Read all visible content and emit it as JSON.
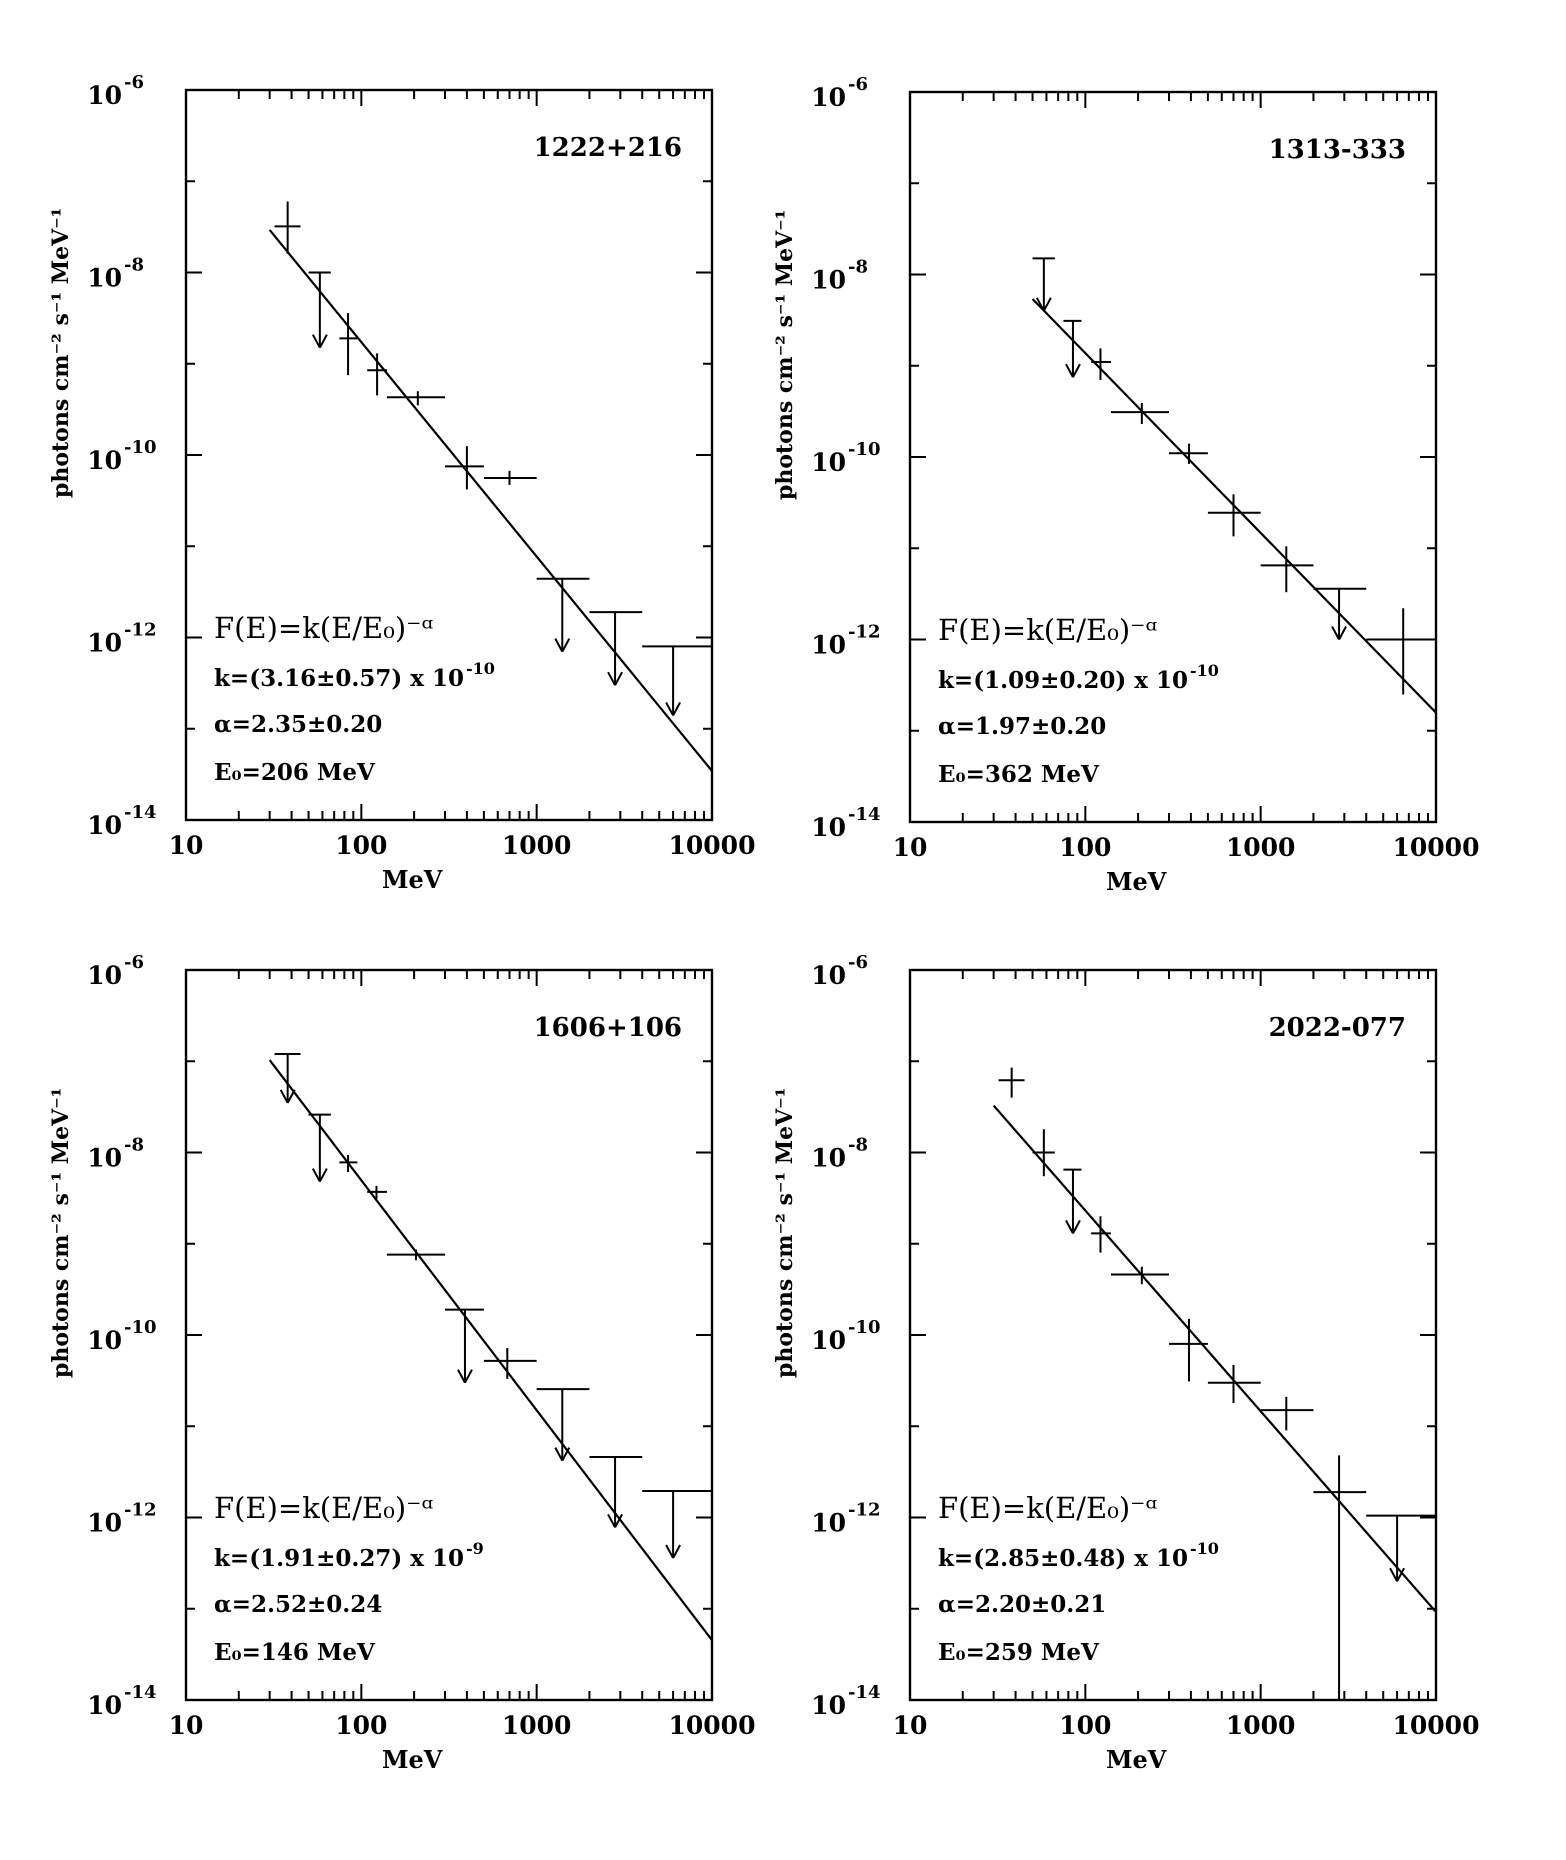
{
  "chart_data": [
    {
      "type": "scatter",
      "title": "1222+216",
      "xlabel": "MeV",
      "ylabel": "photons cm⁻² s⁻¹ MeV⁻¹",
      "xscale": "log",
      "yscale": "log",
      "xlim": [
        10,
        10000
      ],
      "ylim": [
        1e-14,
        1e-06
      ],
      "xticklabels": [
        "10",
        "100",
        "1000",
        "10000"
      ],
      "yticklabels": [
        {
          "base": "10",
          "exp": "-6"
        },
        {
          "base": "10",
          "exp": "-8"
        },
        {
          "base": "10",
          "exp": "-10"
        },
        {
          "base": "10",
          "exp": "-12"
        },
        {
          "base": "10",
          "exp": "-14"
        }
      ],
      "equation": "F(E)=k(E/E₀)⁻ᵅ",
      "params": [
        "k=(3.16±0.57) x 10",
        "α=2.35±0.20",
        "E₀=206 MeV"
      ],
      "k_exponent": "-10",
      "fit": {
        "k": 3.16e-10,
        "E0": 206,
        "alpha": 2.35,
        "xrange": [
          30,
          10000
        ]
      },
      "points": [
        {
          "x": 38,
          "y": 3.2e-08,
          "xlo": 32,
          "xhi": 45,
          "ylo": 1.6e-08,
          "yhi": 6e-08
        },
        {
          "x": 84,
          "y": 1.9e-09,
          "xlo": 75,
          "xhi": 95,
          "ylo": 7.5e-10,
          "yhi": 3.6e-09
        },
        {
          "x": 123,
          "y": 8.5e-10,
          "xlo": 108,
          "xhi": 140,
          "ylo": 4.5e-10,
          "yhi": 1.3e-09
        },
        {
          "x": 210,
          "y": 4.3e-10,
          "xlo": 140,
          "xhi": 300,
          "ylo": 3.5e-10,
          "yhi": 5e-10
        },
        {
          "x": 400,
          "y": 7.5e-11,
          "xlo": 300,
          "xhi": 500,
          "ylo": 4.2e-11,
          "yhi": 1.25e-10
        },
        {
          "x": 700,
          "y": 5.6e-11,
          "xlo": 500,
          "xhi": 1000,
          "ylo": 4.7e-11,
          "yhi": 6.7e-11
        }
      ],
      "upper_limits": [
        {
          "x": 58,
          "y": 1e-08,
          "xlo": 50,
          "xhi": 67,
          "yarrow": 1.5e-09
        },
        {
          "x": 1400,
          "y": 4.4e-12,
          "xlo": 1000,
          "xhi": 2000,
          "yarrow": 7e-13
        },
        {
          "x": 2800,
          "y": 1.9e-12,
          "xlo": 2000,
          "xhi": 4000,
          "yarrow": 3e-13
        },
        {
          "x": 6000,
          "y": 8e-13,
          "xlo": 4000,
          "xhi": 10000,
          "yarrow": 1.4e-13
        }
      ]
    },
    {
      "type": "scatter",
      "title": "1313-333",
      "xlabel": "MeV",
      "ylabel": "photons cm⁻² s⁻¹ MeV⁻¹",
      "xscale": "log",
      "yscale": "log",
      "xlim": [
        10,
        10000
      ],
      "ylim": [
        1e-14,
        1e-06
      ],
      "xticklabels": [
        "10",
        "100",
        "1000",
        "10000"
      ],
      "yticklabels": [
        {
          "base": "10",
          "exp": "-6"
        },
        {
          "base": "10",
          "exp": "-8"
        },
        {
          "base": "10",
          "exp": "-10"
        },
        {
          "base": "10",
          "exp": "-12"
        },
        {
          "base": "10",
          "exp": "-14"
        }
      ],
      "equation": "F(E)=k(E/E₀)⁻ᵅ",
      "params": [
        "k=(1.09±0.20) x 10",
        "α=1.97±0.20",
        "E₀=362 MeV"
      ],
      "k_exponent": "-10",
      "fit": {
        "k": 1.09e-10,
        "E0": 362,
        "alpha": 1.97,
        "xrange": [
          50,
          10000
        ]
      },
      "points": [
        {
          "x": 122,
          "y": 1.1e-09,
          "xlo": 108,
          "xhi": 140,
          "ylo": 7e-10,
          "yhi": 1.55e-09
        },
        {
          "x": 210,
          "y": 3.1e-10,
          "xlo": 140,
          "xhi": 300,
          "ylo": 2.3e-10,
          "yhi": 3.9e-10
        },
        {
          "x": 390,
          "y": 1.1e-10,
          "xlo": 300,
          "xhi": 500,
          "ylo": 8.4e-11,
          "yhi": 1.4e-10
        },
        {
          "x": 700,
          "y": 2.45e-11,
          "xlo": 500,
          "xhi": 1000,
          "ylo": 1.35e-11,
          "yhi": 3.9e-11
        },
        {
          "x": 1400,
          "y": 6.5e-12,
          "xlo": 1000,
          "xhi": 2000,
          "ylo": 3.3e-12,
          "yhi": 1.05e-11
        },
        {
          "x": 6500,
          "y": 1e-12,
          "xlo": 4000,
          "xhi": 10000,
          "ylo": 2.5e-13,
          "yhi": 2.2e-12
        }
      ],
      "upper_limits": [
        {
          "x": 58,
          "y": 1.5e-08,
          "xlo": 50,
          "xhi": 67,
          "yarrow": 4e-09
        },
        {
          "x": 85,
          "y": 3.1e-09,
          "xlo": 75,
          "xhi": 95,
          "yarrow": 7.5e-10
        },
        {
          "x": 2800,
          "y": 3.6e-12,
          "xlo": 2000,
          "xhi": 4000,
          "yarrow": 1e-12
        }
      ]
    },
    {
      "type": "scatter",
      "title": "1606+106",
      "xlabel": "MeV",
      "ylabel": "photons cm⁻² s⁻¹ MeV⁻¹",
      "xscale": "log",
      "yscale": "log",
      "xlim": [
        10,
        10000
      ],
      "ylim": [
        1e-14,
        1e-06
      ],
      "xticklabels": [
        "10",
        "100",
        "1000",
        "10000"
      ],
      "yticklabels": [
        {
          "base": "10",
          "exp": "-6"
        },
        {
          "base": "10",
          "exp": "-8"
        },
        {
          "base": "10",
          "exp": "-10"
        },
        {
          "base": "10",
          "exp": "-12"
        },
        {
          "base": "10",
          "exp": "-14"
        }
      ],
      "equation": "F(E)=k(E/E₀)⁻ᵅ",
      "params": [
        "k=(1.91±0.27) x 10",
        "α=2.52±0.24",
        "E₀=146 MeV"
      ],
      "k_exponent": "-9",
      "fit": {
        "k": 1.91e-09,
        "E0": 146,
        "alpha": 2.52,
        "xrange": [
          30,
          10000
        ]
      },
      "points": [
        {
          "x": 84,
          "y": 7.8e-09,
          "xlo": 75,
          "xhi": 95,
          "ylo": 6.1e-09,
          "yhi": 9.4e-09
        },
        {
          "x": 122,
          "y": 3.7e-09,
          "xlo": 108,
          "xhi": 140,
          "ylo": 3.1e-09,
          "yhi": 4.3e-09
        },
        {
          "x": 205,
          "y": 7.6e-10,
          "xlo": 140,
          "xhi": 300,
          "ylo": 6.6e-10,
          "yhi": 8.6e-10
        },
        {
          "x": 680,
          "y": 5.2e-11,
          "xlo": 500,
          "xhi": 1000,
          "ylo": 3.3e-11,
          "yhi": 7.2e-11
        }
      ],
      "upper_limits": [
        {
          "x": 38,
          "y": 1.2e-07,
          "xlo": 32,
          "xhi": 45,
          "yarrow": 3.5e-08
        },
        {
          "x": 58,
          "y": 2.6e-08,
          "xlo": 50,
          "xhi": 67,
          "yarrow": 4.8e-09
        },
        {
          "x": 390,
          "y": 1.9e-10,
          "xlo": 300,
          "xhi": 500,
          "yarrow": 3e-11
        },
        {
          "x": 1400,
          "y": 2.55e-11,
          "xlo": 1000,
          "xhi": 2000,
          "yarrow": 4.2e-12
        },
        {
          "x": 2800,
          "y": 4.6e-12,
          "xlo": 2000,
          "xhi": 4000,
          "yarrow": 7.8e-13
        },
        {
          "x": 6000,
          "y": 1.95e-12,
          "xlo": 4000,
          "xhi": 10000,
          "yarrow": 3.6e-13
        }
      ]
    },
    {
      "type": "scatter",
      "title": "2022-077",
      "xlabel": "MeV",
      "ylabel": "photons cm⁻² s⁻¹ MeV⁻¹",
      "xscale": "log",
      "yscale": "log",
      "xlim": [
        10,
        10000
      ],
      "ylim": [
        1e-14,
        1e-06
      ],
      "xticklabels": [
        "10",
        "100",
        "1000",
        "10000"
      ],
      "yticklabels": [
        {
          "base": "10",
          "exp": "-6"
        },
        {
          "base": "10",
          "exp": "-8"
        },
        {
          "base": "10",
          "exp": "-10"
        },
        {
          "base": "10",
          "exp": "-12"
        },
        {
          "base": "10",
          "exp": "-14"
        }
      ],
      "equation": "F(E)=k(E/E₀)⁻ᵅ",
      "params": [
        "k=(2.85±0.48) x 10",
        "α=2.20±0.21",
        "E₀=259 MeV"
      ],
      "k_exponent": "-10",
      "fit": {
        "k": 2.85e-10,
        "E0": 259,
        "alpha": 2.2,
        "xrange": [
          30,
          10000
        ]
      },
      "points": [
        {
          "x": 38,
          "y": 6.2e-08,
          "xlo": 32,
          "xhi": 45,
          "ylo": 4e-08,
          "yhi": 8.5e-08
        },
        {
          "x": 58,
          "y": 1e-08,
          "xlo": 50,
          "xhi": 67,
          "ylo": 5.5e-09,
          "yhi": 1.8e-08
        },
        {
          "x": 122,
          "y": 1.3e-09,
          "xlo": 108,
          "xhi": 140,
          "ylo": 8e-10,
          "yhi": 2e-09
        },
        {
          "x": 210,
          "y": 4.6e-10,
          "xlo": 140,
          "xhi": 300,
          "ylo": 3.6e-10,
          "yhi": 5.6e-10
        },
        {
          "x": 390,
          "y": 8e-11,
          "xlo": 300,
          "xhi": 500,
          "ylo": 3.1e-11,
          "yhi": 1.5e-10
        },
        {
          "x": 700,
          "y": 3e-11,
          "xlo": 500,
          "xhi": 1000,
          "ylo": 1.8e-11,
          "yhi": 4.7e-11
        },
        {
          "x": 1400,
          "y": 1.5e-11,
          "xlo": 1000,
          "xhi": 2000,
          "ylo": 9e-12,
          "yhi": 2.1e-11
        },
        {
          "x": 2800,
          "y": 1.9e-12,
          "xlo": 2000,
          "xhi": 4000,
          "ylo": 1e-14,
          "yhi": 4.8e-12
        }
      ],
      "upper_limits": [
        {
          "x": 85,
          "y": 6.5e-09,
          "xlo": 75,
          "xhi": 95,
          "yarrow": 1.3e-09
        },
        {
          "x": 6000,
          "y": 1.05e-12,
          "xlo": 4000,
          "xhi": 10000,
          "yarrow": 2e-13
        }
      ]
    }
  ]
}
